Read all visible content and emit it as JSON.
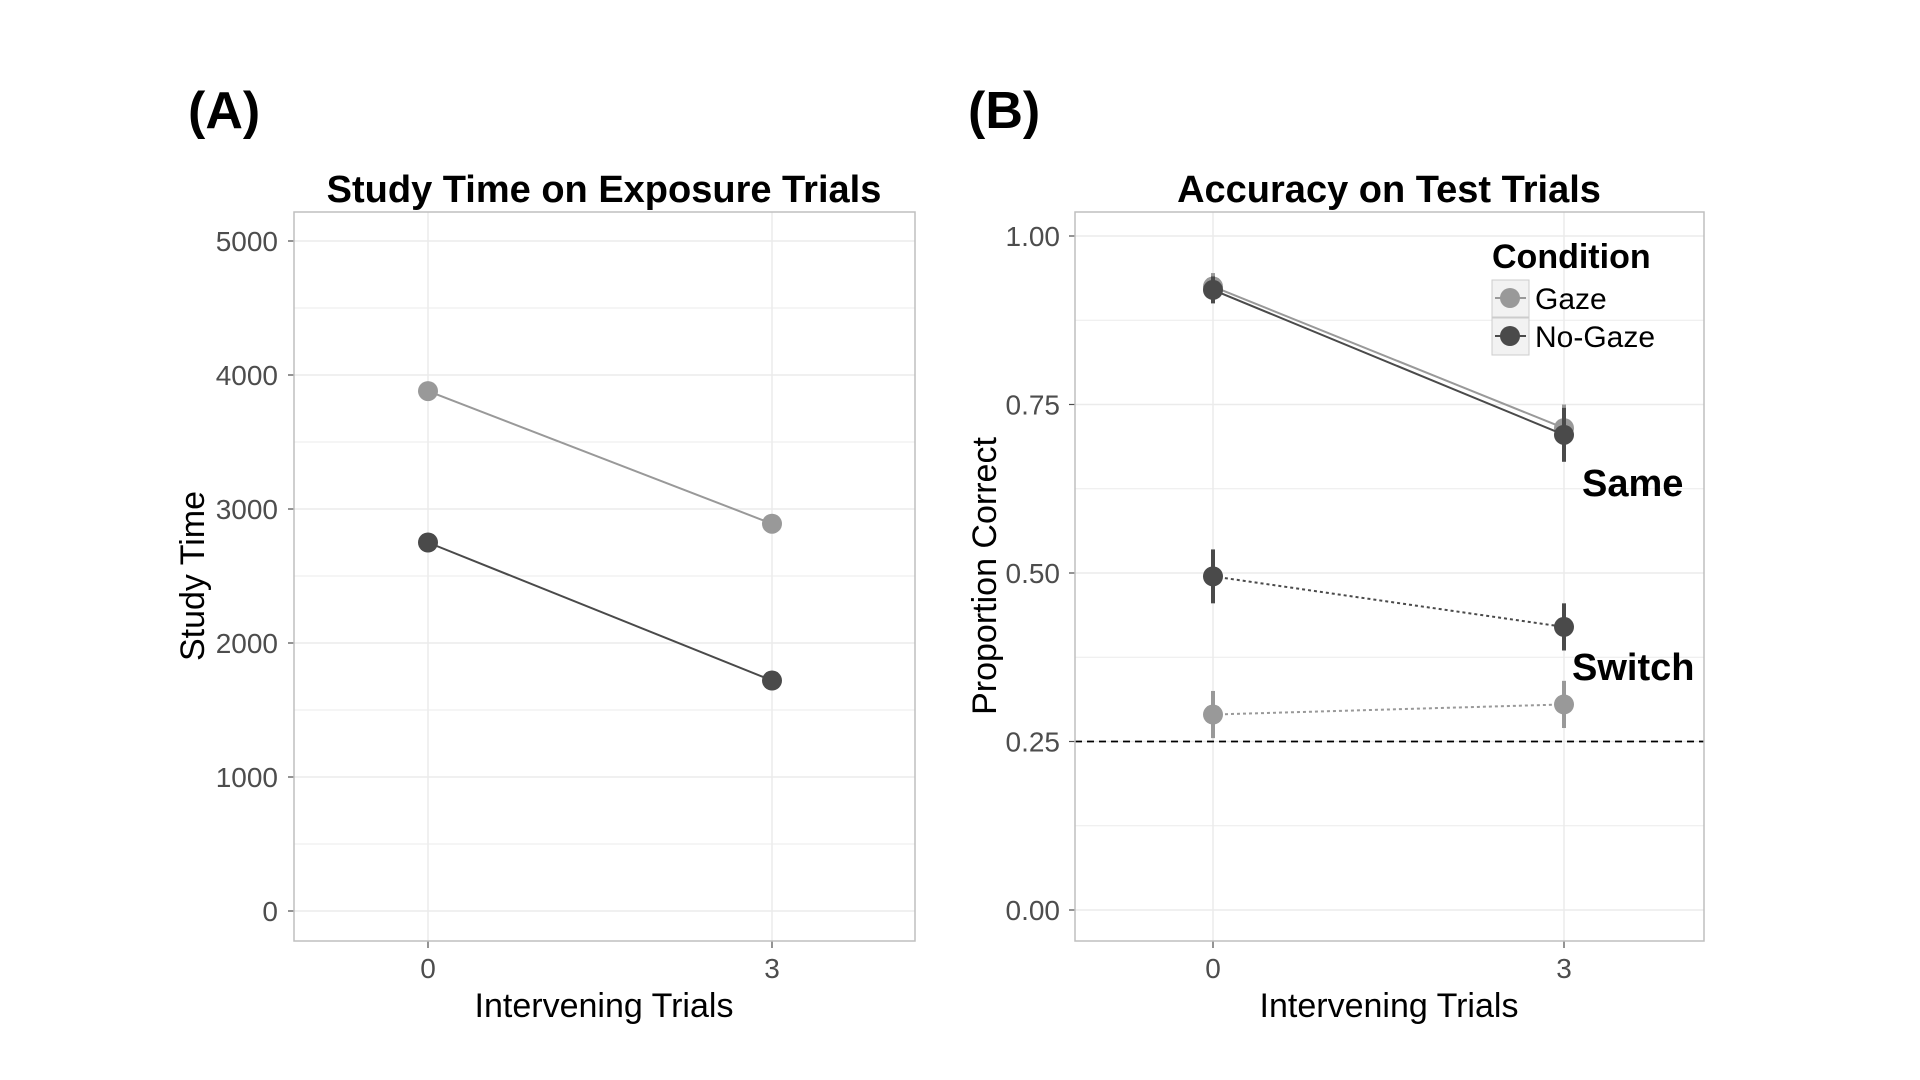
{
  "panels": {
    "a": {
      "letter": "(A)"
    },
    "b": {
      "letter": "(B)"
    }
  },
  "colors": {
    "gaze": "#999999",
    "nogaze": "#4a4a4a",
    "grid": "#ebebeb",
    "panel_border": "#bfbfbf",
    "chance_line": "#000000"
  },
  "chart_data": [
    {
      "type": "line",
      "title": "Study Time on Exposure Trials",
      "xlabel": "Intervening Trials",
      "ylabel": "Study Time",
      "x_ticks": [
        "0",
        "3"
      ],
      "ylim": [
        0,
        5000
      ],
      "y_ticks": [
        0,
        1000,
        2000,
        3000,
        4000,
        5000
      ],
      "y_tick_labels": [
        "0",
        "1000",
        "2000",
        "3000",
        "4000",
        "5000"
      ],
      "grid": true,
      "legend": "none",
      "series": [
        {
          "color_key": "gaze",
          "line_style": "solid",
          "x": [
            "0",
            "3"
          ],
          "values": [
            3880,
            2890
          ],
          "err": [
            70,
            70
          ]
        },
        {
          "color_key": "nogaze",
          "line_style": "solid",
          "x": [
            "0",
            "3"
          ],
          "values": [
            2750,
            1720
          ],
          "err": [
            50,
            50
          ]
        }
      ]
    },
    {
      "type": "line",
      "title": "Accuracy on Test Trials",
      "xlabel": "Intervening Trials",
      "ylabel": "Proportion Correct",
      "x_ticks": [
        "0",
        "3"
      ],
      "ylim": [
        0,
        1
      ],
      "y_ticks": [
        0,
        0.25,
        0.5,
        0.75,
        1.0
      ],
      "y_tick_labels": [
        "0.00",
        "0.25",
        "0.50",
        "0.75",
        "1.00"
      ],
      "grid": true,
      "legend_placement": "top-right",
      "legend": {
        "title": "Condition",
        "entries": [
          {
            "name": "Gaze",
            "color_key": "gaze"
          },
          {
            "name": "No-Gaze",
            "color_key": "nogaze"
          }
        ]
      },
      "annotations": [
        {
          "text": "Same",
          "x": "3",
          "y": 0.64
        },
        {
          "text": "Switch",
          "x": "3",
          "y": 0.36
        }
      ],
      "reference_line": {
        "y": 0.25,
        "style": "dashed"
      },
      "series": [
        {
          "name": "Gaze",
          "trial_type": "Same",
          "color_key": "gaze",
          "line_style": "solid",
          "x": [
            "0",
            "3"
          ],
          "values": [
            0.925,
            0.715
          ],
          "err": [
            0.02,
            0.035
          ]
        },
        {
          "name": "No-Gaze",
          "trial_type": "Same",
          "color_key": "nogaze",
          "line_style": "solid",
          "x": [
            "0",
            "3"
          ],
          "values": [
            0.92,
            0.705
          ],
          "err": [
            0.02,
            0.04
          ]
        },
        {
          "name": "No-Gaze",
          "trial_type": "Switch",
          "color_key": "nogaze",
          "line_style": "dotted",
          "x": [
            "0",
            "3"
          ],
          "values": [
            0.495,
            0.42
          ],
          "err": [
            0.04,
            0.035
          ]
        },
        {
          "name": "Gaze",
          "trial_type": "Switch",
          "color_key": "gaze",
          "line_style": "dotted",
          "x": [
            "0",
            "3"
          ],
          "values": [
            0.29,
            0.305
          ],
          "err": [
            0.035,
            0.035
          ]
        }
      ]
    }
  ]
}
